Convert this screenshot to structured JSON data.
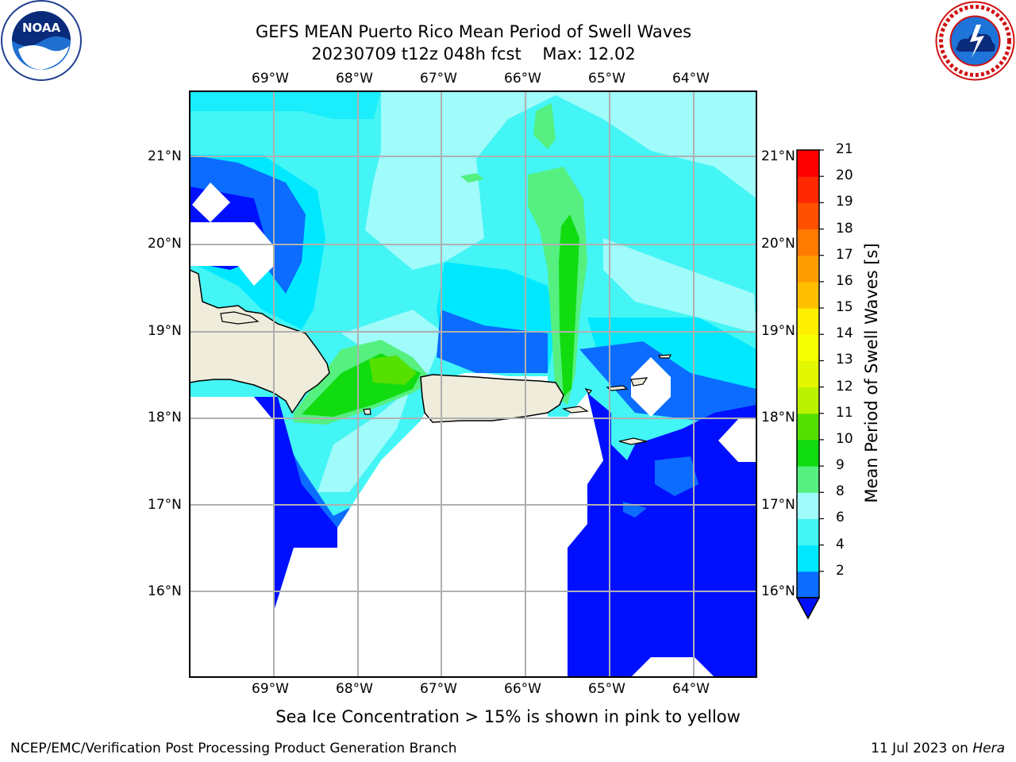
{
  "header": {
    "title_line1": "GEFS MEAN Puerto Rico Mean Period of Swell Waves",
    "title_line2": "20230709 t12z 048h fcst    Max: 12.02",
    "left_logo": "noaa-logo",
    "left_logo_text": "NOAA",
    "right_logo": "national-weather-service-logo",
    "right_logo_text": "NATIONAL WEATHER SERVICE"
  },
  "map": {
    "lon_labels": [
      "69°W",
      "68°W",
      "67°W",
      "66°W",
      "65°W",
      "64°W"
    ],
    "lat_labels": [
      "21°N",
      "20°N",
      "19°N",
      "18°N",
      "17°N",
      "16°N"
    ],
    "land_color": "#efecdc",
    "grid_color": "#b0b0b0"
  },
  "colorbar": {
    "label": "Mean Period of Swell Waves [s]",
    "ticks": [
      "21",
      "20",
      "19",
      "18",
      "17",
      "16",
      "15",
      "14",
      "13",
      "12",
      "11",
      "10",
      "9",
      "8",
      "6",
      "4",
      "2"
    ],
    "levels": [
      {
        "from": "2",
        "to": "4",
        "color": "#0b6cff"
      },
      {
        "from": "4",
        "to": "6",
        "color": "#00e8ff"
      },
      {
        "from": "6",
        "to": "8",
        "color": "#43f5f5"
      },
      {
        "from": "8",
        "to": "9",
        "color": "#a0fbfb"
      },
      {
        "from": "9",
        "to": "10",
        "color": "#55f080"
      },
      {
        "from": "10",
        "to": "11",
        "color": "#10dc10"
      },
      {
        "from": "11",
        "to": "12",
        "color": "#55e000"
      },
      {
        "from": "12",
        "to": "13",
        "color": "#bbf200"
      },
      {
        "from": "13",
        "to": "14",
        "color": "#e1f800"
      },
      {
        "from": "14",
        "to": "15",
        "color": "#f5ff00"
      },
      {
        "from": "15",
        "to": "16",
        "color": "#fff000"
      },
      {
        "from": "16",
        "to": "17",
        "color": "#ffbf00"
      },
      {
        "from": "17",
        "to": "18",
        "color": "#ff9d00"
      },
      {
        "from": "18",
        "to": "19",
        "color": "#ff7a00"
      },
      {
        "from": "19",
        "to": "20",
        "color": "#ff5000"
      },
      {
        "from": "20",
        "to": "21",
        "color": "#ff2800"
      },
      {
        "from": "21",
        "to": "",
        "color": "#ff0000"
      }
    ],
    "under_color": "#0010ff"
  },
  "caption": "Sea Ice Concentration > 15% is shown in pink to yellow",
  "footer": {
    "left": "NCEP/EMC/Verification Post Processing Product Generation Branch",
    "date": "11 Jul 2023 on ",
    "host": "Hera"
  }
}
